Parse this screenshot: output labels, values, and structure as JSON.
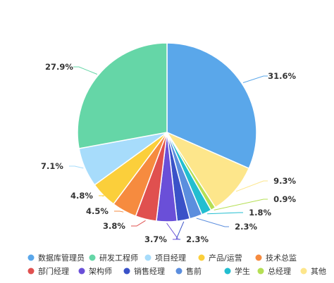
{
  "chart_data": {
    "type": "pie",
    "title": "",
    "legend_position": "bottom",
    "slices": [
      {
        "label": "数据库管理员",
        "value": 31.6,
        "display": "31.6%",
        "color": "#5aa7ea"
      },
      {
        "label": "其他",
        "value": 9.3,
        "display": "9.3%",
        "color": "#fde68b"
      },
      {
        "label": "总经理",
        "value": 0.9,
        "display": "0.9%",
        "color": "#b5df54"
      },
      {
        "label": "学生",
        "value": 1.8,
        "display": "1.8%",
        "color": "#22bed0"
      },
      {
        "label": "售前",
        "value": 2.3,
        "display": "2.3%",
        "color": "#5b8ede"
      },
      {
        "label": "销售经理",
        "value": 2.3,
        "display": "2.3%",
        "color": "#3a52c8"
      },
      {
        "label": "架构师",
        "value": 3.7,
        "display": "3.7%",
        "color": "#6a4fd8"
      },
      {
        "label": "部门经理",
        "value": 3.8,
        "display": "3.8%",
        "color": "#e0504f"
      },
      {
        "label": "技术总监",
        "value": 4.5,
        "display": "4.5%",
        "color": "#f68b3f"
      },
      {
        "label": "产品/运营",
        "value": 4.8,
        "display": "4.8%",
        "color": "#fbcf3b"
      },
      {
        "label": "项目经理",
        "value": 7.1,
        "display": "7.1%",
        "color": "#a7dcfb"
      },
      {
        "label": "研发工程师",
        "value": 27.9,
        "display": "27.9%",
        "color": "#65d6a7"
      }
    ],
    "legend": [
      [
        "数据库管理员",
        "研发工程师",
        "项目经理",
        "产品/运营",
        "技术总监"
      ],
      [
        "部门经理",
        "架构师",
        "销售经理",
        "售前",
        "学生",
        "总经理",
        "其他"
      ]
    ]
  }
}
